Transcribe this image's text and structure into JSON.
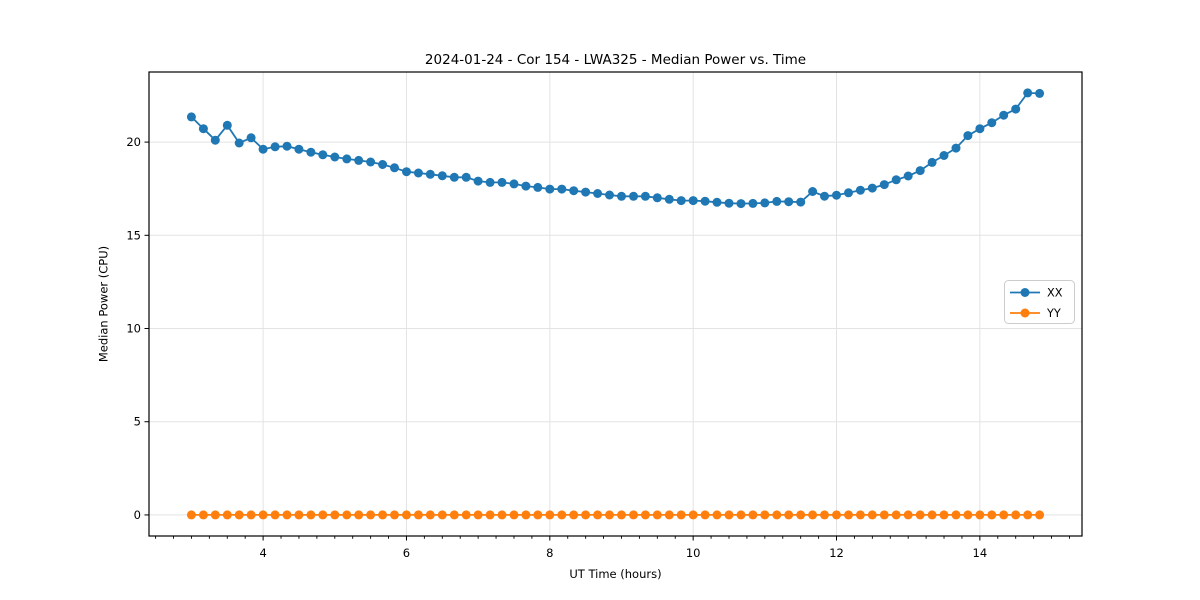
{
  "figure": {
    "background": "#ffffff"
  },
  "style": {
    "grid_color": "#e3e3e3",
    "spine_color": "#000000",
    "tick_color": "#000000",
    "legend_border_color": "#cccccc",
    "legend_background": "#ffffff"
  },
  "chart_data": {
    "type": "line",
    "title": "2024-01-24 - Cor 154 - LWA325 - Median Power vs. Time",
    "xlabel": "UT Time (hours)",
    "ylabel": "Median Power (CPU)",
    "xlim": [
      2.408,
      15.425
    ],
    "ylim": [
      -1.13,
      23.76
    ],
    "x_ticks": [
      4,
      6,
      8,
      10,
      12,
      14
    ],
    "y_ticks": [
      0,
      5,
      10,
      15,
      20
    ],
    "x_minor_tick_step": 0.25,
    "grid": true,
    "legend_position": "center right",
    "marker": "circle",
    "x": [
      3.0,
      3.167,
      3.333,
      3.5,
      3.667,
      3.833,
      4.0,
      4.167,
      4.333,
      4.5,
      4.667,
      4.833,
      5.0,
      5.167,
      5.333,
      5.5,
      5.667,
      5.833,
      6.0,
      6.167,
      6.333,
      6.5,
      6.667,
      6.833,
      7.0,
      7.167,
      7.333,
      7.5,
      7.667,
      7.833,
      8.0,
      8.167,
      8.333,
      8.5,
      8.667,
      8.833,
      9.0,
      9.167,
      9.333,
      9.5,
      9.667,
      9.833,
      10.0,
      10.167,
      10.333,
      10.5,
      10.667,
      10.833,
      11.0,
      11.167,
      11.333,
      11.5,
      11.667,
      11.833,
      12.0,
      12.167,
      12.333,
      12.5,
      12.667,
      12.833,
      13.0,
      13.167,
      13.333,
      13.5,
      13.667,
      13.833,
      14.0,
      14.167,
      14.333,
      14.5,
      14.667,
      14.833
    ],
    "series": [
      {
        "name": "XX",
        "color": "#1f77b4",
        "values": [
          21.35,
          20.72,
          20.1,
          20.9,
          19.95,
          20.23,
          19.62,
          19.75,
          19.78,
          19.62,
          19.46,
          19.32,
          19.2,
          19.1,
          19.02,
          18.93,
          18.8,
          18.62,
          18.41,
          18.34,
          18.27,
          18.19,
          18.11,
          18.11,
          17.91,
          17.84,
          17.84,
          17.76,
          17.64,
          17.57,
          17.48,
          17.48,
          17.39,
          17.32,
          17.24,
          17.16,
          17.09,
          17.09,
          17.09,
          17.01,
          16.93,
          16.86,
          16.86,
          16.83,
          16.77,
          16.72,
          16.7,
          16.71,
          16.74,
          16.82,
          16.8,
          16.78,
          17.35,
          17.1,
          17.15,
          17.28,
          17.42,
          17.53,
          17.72,
          17.98,
          18.18,
          18.47,
          18.91,
          19.28,
          19.68,
          20.35,
          20.72,
          21.04,
          21.44,
          21.77,
          22.64,
          22.61
        ]
      },
      {
        "name": "YY",
        "color": "#ff7f0e",
        "values": [
          0,
          0,
          0,
          0,
          0,
          0,
          0,
          0,
          0,
          0,
          0,
          0,
          0,
          0,
          0,
          0,
          0,
          0,
          0,
          0,
          0,
          0,
          0,
          0,
          0,
          0,
          0,
          0,
          0,
          0,
          0,
          0,
          0,
          0,
          0,
          0,
          0,
          0,
          0,
          0,
          0,
          0,
          0,
          0,
          0,
          0,
          0,
          0,
          0,
          0,
          0,
          0,
          0,
          0,
          0,
          0,
          0,
          0,
          0,
          0,
          0,
          0,
          0,
          0,
          0,
          0,
          0,
          0,
          0,
          0,
          0,
          0
        ]
      }
    ]
  }
}
